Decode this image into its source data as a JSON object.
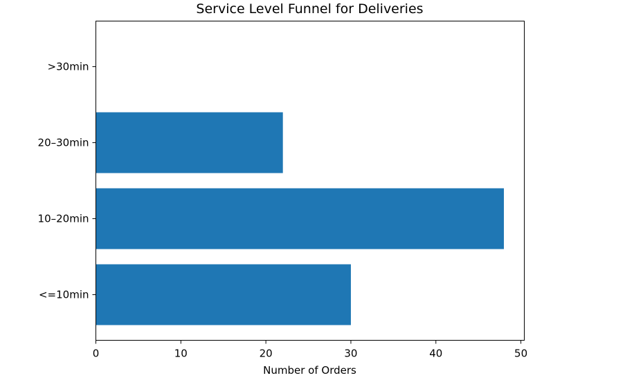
{
  "chart_data": {
    "type": "bar",
    "orientation": "horizontal",
    "title": "Service Level Funnel for Deliveries",
    "xlabel": "Number of Orders",
    "ylabel": "",
    "categories": [
      "<=10min",
      "10–20min",
      "20–30min",
      ">30min"
    ],
    "values": [
      30,
      48,
      22,
      0
    ],
    "xlim": [
      0,
      50.4
    ],
    "xticks": [
      "0",
      "10",
      "20",
      "30",
      "40",
      "50"
    ],
    "grid": false,
    "legend": "none",
    "bar_color": "#1f77b4"
  }
}
